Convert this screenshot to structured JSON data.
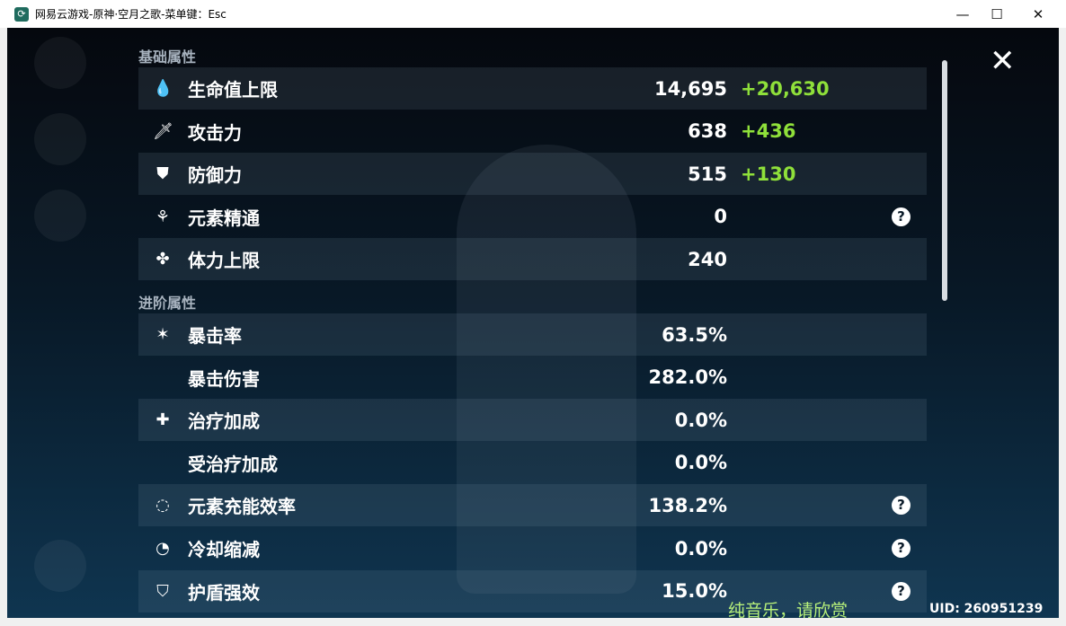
{
  "window": {
    "title": "网易云游戏-原神·空月之歌-菜单键：Esc",
    "minimize": "—",
    "maximize": "☐",
    "close": "✕"
  },
  "sections": {
    "base": "基础属性",
    "advanced": "进阶属性"
  },
  "base_stats": [
    {
      "icon": "drop-icon",
      "glyph": "💧",
      "label": "生命值上限",
      "value": "14,695",
      "bonus": "+20,630"
    },
    {
      "icon": "sword-icon",
      "glyph": "🗡",
      "label": "攻击力",
      "value": "638",
      "bonus": "+436"
    },
    {
      "icon": "shield-icon",
      "glyph": "⛊",
      "label": "防御力",
      "value": "515",
      "bonus": "+130"
    },
    {
      "icon": "elemental-mastery-icon",
      "glyph": "⚘",
      "label": "元素精通",
      "value": "0",
      "help": "?"
    },
    {
      "icon": "stamina-icon",
      "glyph": "✤",
      "label": "体力上限",
      "value": "240"
    }
  ],
  "advanced_stats": [
    {
      "icon": "crit-rate-icon",
      "glyph": "✶",
      "label": "暴击率",
      "value": "63.5%"
    },
    {
      "label": "暴击伤害",
      "value": "282.0%"
    },
    {
      "icon": "healing-icon",
      "glyph": "✚",
      "label": "治疗加成",
      "value": "0.0%"
    },
    {
      "label": "受治疗加成",
      "value": "0.0%"
    },
    {
      "icon": "energy-recharge-icon",
      "glyph": "◌",
      "label": "元素充能效率",
      "value": "138.2%",
      "help": "?"
    },
    {
      "icon": "cooldown-icon",
      "glyph": "◔",
      "label": "冷却缩减",
      "value": "0.0%",
      "help": "?"
    },
    {
      "icon": "shield-strength-icon",
      "glyph": "⛉",
      "label": "护盾强效",
      "value": "15.0%",
      "help": "?"
    }
  ],
  "close_glyph": "✕",
  "caption": "纯音乐，请欣赏",
  "uid": "UID: 260951239",
  "colors": {
    "bonus": "#8fe03a",
    "caption": "#b7f07a"
  }
}
